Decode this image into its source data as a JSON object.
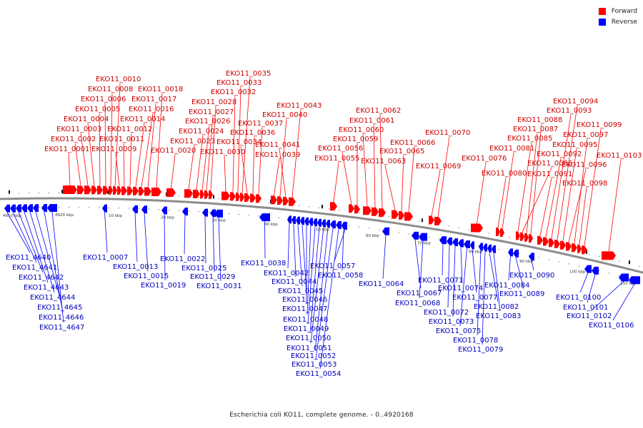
{
  "legend": {
    "forward_label": "Forward",
    "reverse_label": "Reverse",
    "forward_color": "#ff0000",
    "reverse_color": "#0000ff"
  },
  "caption": "Escherichia coli KO11, complete genome. - 0..4920168",
  "scale_labels": [
    "4910 kbp",
    "4920 kbp",
    "10 kbp",
    "20 kbp",
    "30 kbp",
    "40 kbp",
    "50 kbp",
    "60 kbp",
    "70 kbp",
    "80 kbp",
    "90 kbp",
    "100 kbp",
    "110 kbp"
  ],
  "forward_genes": [
    "EKO11_0001",
    "EKO11_0002",
    "EKO11_0003",
    "EKO11_0004",
    "EKO11_0005",
    "EKO11_0006",
    "EKO11_0008",
    "EKO11_0010",
    "EKO11_0009",
    "EKO11_0011",
    "EKO11_0012",
    "EKO11_0014",
    "EKO11_0016",
    "EKO11_0017",
    "EKO11_0018",
    "EKO11_0020",
    "EKO11_0023",
    "EKO11_0024",
    "EKO11_0026",
    "EKO11_0027",
    "EKO11_0028",
    "EKO11_0030",
    "EKO11_0032",
    "EKO11_0033",
    "EKO11_0035",
    "EKO11_0034",
    "EKO11_0036",
    "EKO11_0037",
    "EKO11_0039",
    "EKO11_0040",
    "EKO11_0041",
    "EKO11_0043",
    "EKO11_0055",
    "EKO11_0056",
    "EKO11_0059",
    "EKO11_0060",
    "EKO11_0061",
    "EKO11_0062",
    "EKO11_0063",
    "EKO11_0065",
    "EKO11_0066",
    "EKO11_0069",
    "EKO11_0070",
    "EKO11_0076",
    "EKO11_0080",
    "EKO11_0081",
    "EKO11_0085",
    "EKO11_0086",
    "EKO11_0087",
    "EKO11_0088",
    "EKO11_0091",
    "EKO11_0092",
    "EKO11_0093",
    "EKO11_0094",
    "EKO11_0095",
    "EKO11_0096",
    "EKO11_0097",
    "EKO11_0098",
    "EKO11_0099",
    "EKO11_0103"
  ],
  "reverse_genes": [
    "EKO11_4640",
    "EKO11_4641",
    "EKO11_4642",
    "EKO11_4643",
    "EKO11_4644",
    "EKO11_4645",
    "EKO11_4646",
    "EKO11_4647",
    "EKO11_0007",
    "EKO11_0013",
    "EKO11_0015",
    "EKO11_0019",
    "EKO11_0022",
    "EKO11_0025",
    "EKO11_0029",
    "EKO11_0031",
    "EKO11_0038",
    "EKO11_0042",
    "EKO11_0044",
    "EKO11_0045",
    "EKO11_0046",
    "EKO11_0047",
    "EKO11_0048",
    "EKO11_0049",
    "EKO11_0050",
    "EKO11_0051",
    "EKO11_0052",
    "EKO11_0053",
    "EKO11_0054",
    "EKO11_0057",
    "EKO11_0058",
    "EKO11_0064",
    "EKO11_0067",
    "EKO11_0068",
    "EKO11_0071",
    "EKO11_0072",
    "EKO11_0073",
    "EKO11_0074",
    "EKO11_0075",
    "EKO11_0077",
    "EKO11_0078",
    "EKO11_0079",
    "EKO11_0082",
    "EKO11_0083",
    "EKO11_0084",
    "EKO11_0089",
    "EKO11_0090",
    "EKO11_0100",
    "EKO11_0101",
    "EKO11_0102",
    "EKO11_0106"
  ]
}
